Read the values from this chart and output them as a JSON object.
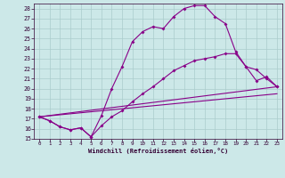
{
  "xlabel": "Windchill (Refroidissement éolien,°C)",
  "background_color": "#cce8e8",
  "grid_color": "#aacccc",
  "line_color": "#880088",
  "xlim": [
    -0.5,
    23.5
  ],
  "ylim": [
    15,
    28.5
  ],
  "xticks": [
    0,
    1,
    2,
    3,
    4,
    5,
    6,
    7,
    8,
    9,
    10,
    11,
    12,
    13,
    14,
    15,
    16,
    17,
    18,
    19,
    20,
    21,
    22,
    23
  ],
  "yticks": [
    15,
    16,
    17,
    18,
    19,
    20,
    21,
    22,
    23,
    24,
    25,
    26,
    27,
    28
  ],
  "line1_x": [
    0,
    1,
    2,
    3,
    4,
    5,
    6,
    7,
    8,
    9,
    10,
    11,
    12,
    13,
    14,
    15,
    16,
    17,
    18,
    19,
    20,
    21,
    22,
    23
  ],
  "line1_y": [
    17.2,
    16.8,
    16.2,
    15.9,
    16.1,
    15.2,
    17.3,
    20.0,
    22.2,
    24.7,
    25.7,
    26.2,
    26.0,
    27.2,
    28.0,
    28.3,
    28.3,
    27.2,
    26.5,
    23.7,
    22.2,
    20.8,
    21.2,
    20.2
  ],
  "line2_x": [
    0,
    1,
    2,
    3,
    4,
    5,
    6,
    7,
    8,
    9,
    10,
    11,
    12,
    13,
    14,
    15,
    16,
    17,
    18,
    19,
    20,
    21,
    22,
    23
  ],
  "line2_y": [
    17.2,
    16.8,
    16.2,
    15.9,
    16.1,
    15.2,
    16.3,
    17.2,
    17.8,
    18.7,
    19.5,
    20.2,
    21.0,
    21.8,
    22.3,
    22.8,
    23.0,
    23.2,
    23.5,
    23.5,
    22.2,
    21.9,
    21.0,
    20.2
  ],
  "line3_x": [
    0,
    23
  ],
  "line3_y": [
    17.2,
    20.2
  ],
  "line4_x": [
    0,
    23
  ],
  "line4_y": [
    17.2,
    19.5
  ]
}
